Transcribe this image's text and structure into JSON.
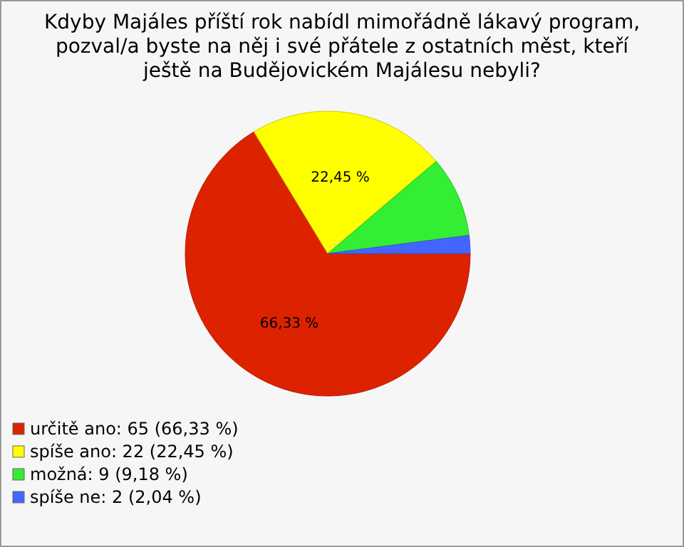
{
  "chart_data": {
    "type": "pie",
    "title": "Kdyby Majáles příští rok nabídl mimořádně lákavý program, pozval/a byste na něj i své přátele z ostatních měst, kteří ještě na Budějovickém Majálesu nebyli?",
    "categories": [
      "určitě ano: 65 (66,33 %)",
      "spíše ano: 22 (22,45 %)",
      "možná: 9 (9,18 %)",
      "spíše ne: 2 (2,04 %)"
    ],
    "values": [
      66.33,
      22.45,
      9.18,
      2.04
    ],
    "colors": [
      "#dd2200",
      "#ffff00",
      "#33ee33",
      "#4466ff"
    ],
    "value_labels": [
      "66,33 %",
      "22,45 %",
      null,
      null
    ],
    "legend": "bottom left"
  }
}
